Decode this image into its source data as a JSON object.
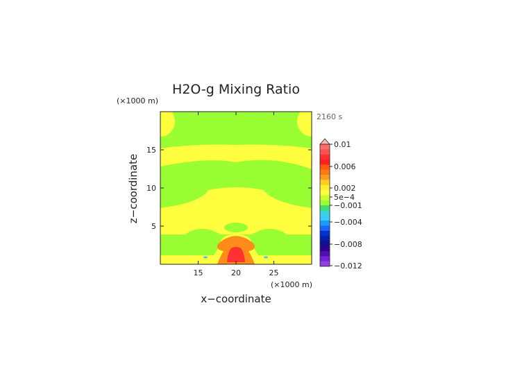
{
  "chart_data": {
    "type": "heatmap",
    "title": "H2O-g Mixing Ratio",
    "time_label": "2160 s",
    "xlabel": "x−coordinate",
    "ylabel": "z−coordinate",
    "x_unit": "(×1000 m)",
    "y_unit": "(×1000 m)",
    "xlim": [
      10,
      30
    ],
    "ylim": [
      0,
      20
    ],
    "x_ticks": [
      15,
      20,
      25
    ],
    "y_ticks": [
      5,
      10,
      15
    ],
    "colorbar": {
      "levels": [
        -0.012,
        -0.008,
        -0.004,
        -0.001,
        0.0005,
        0.002,
        0.006,
        0.01
      ],
      "tick_labels": [
        "0.01",
        "0.006",
        "0.002",
        "5e−4",
        "−0.001",
        "−0.004",
        "−0.008",
        "−0.012"
      ],
      "colors": {
        "above_max": "#ffb6b6",
        "high": "#ff3030",
        "orange": "#ff8c1a",
        "yellow": "#ffff40",
        "green": "#99ff33",
        "cyan": "#33ccff",
        "blue": "#0033cc",
        "purple": "#7a1fd6"
      }
    },
    "field": {
      "background_level": "green (−0.001 to 5e−4)",
      "regions": [
        {
          "level": "yellow",
          "description": "broad layer",
          "x": [
            10,
            30
          ],
          "z": [
            3,
            10
          ]
        },
        {
          "level": "yellow",
          "description": "upper layer",
          "x": [
            10,
            30
          ],
          "z": [
            13,
            16
          ]
        },
        {
          "level": "yellow",
          "description": "top corners",
          "x": [
            [
              10,
              11
            ],
            [
              29,
              30
            ]
          ],
          "z": [
            17.5,
            20
          ]
        },
        {
          "level": "orange",
          "description": "thermal cap",
          "x": [
            17.5,
            22.5
          ],
          "z": [
            0,
            4
          ]
        },
        {
          "level": "red",
          "description": "core",
          "x": [
            19,
            21
          ],
          "z": [
            0.5,
            2.5
          ]
        }
      ]
    }
  }
}
